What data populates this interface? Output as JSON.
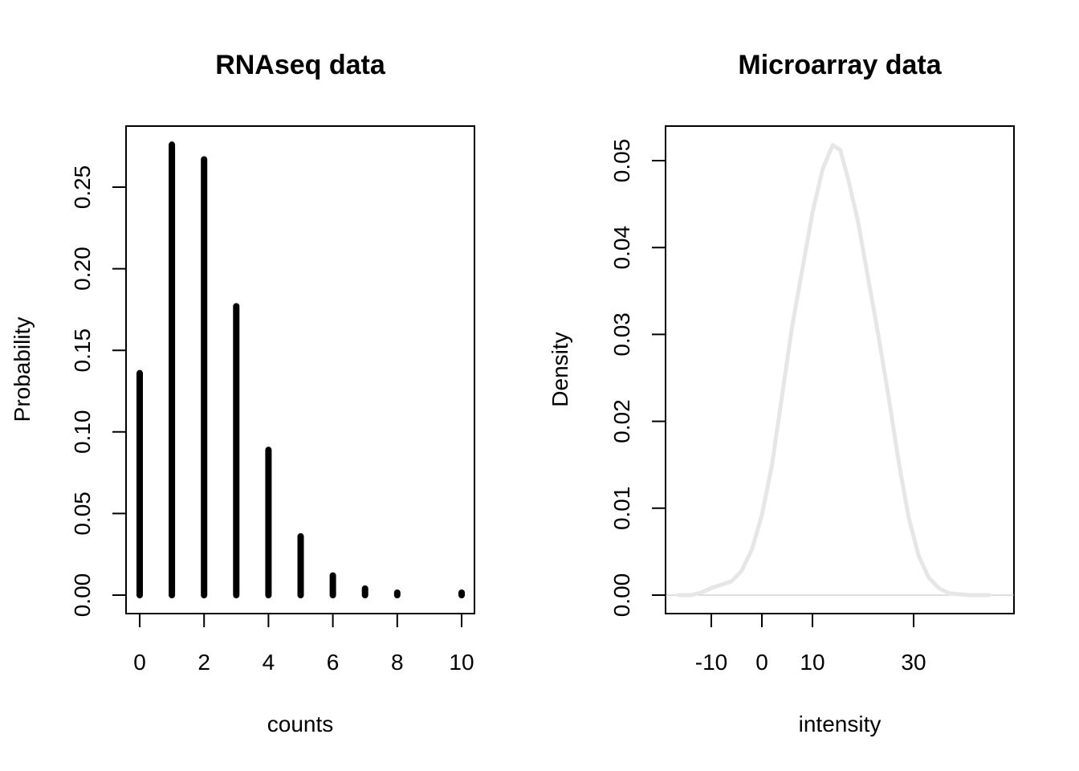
{
  "chart_data": [
    {
      "type": "bar",
      "title": "RNAseq data",
      "xlabel": "counts",
      "ylabel": "Probability",
      "x": [
        0,
        1,
        2,
        3,
        4,
        5,
        6,
        7,
        8,
        10
      ],
      "values": [
        0.136,
        0.276,
        0.267,
        0.177,
        0.089,
        0.036,
        0.012,
        0.004,
        0.001,
        0.0005
      ],
      "xlim": [
        -0.4,
        10.4
      ],
      "ylim": [
        0,
        0.292
      ],
      "xticks": [
        "0",
        "2",
        "4",
        "6",
        "8",
        "10"
      ],
      "yticks": [
        "0.00",
        "0.05",
        "0.10",
        "0.15",
        "0.20",
        "0.25"
      ],
      "bar_color": "#000000",
      "grid": false
    },
    {
      "type": "line",
      "title": "Microarray data",
      "xlabel": "intensity",
      "ylabel": "Density",
      "x": [
        -16.5,
        -14,
        -12,
        -10,
        -8,
        -6,
        -4,
        -2,
        0,
        2,
        4,
        6,
        8,
        10,
        12,
        14,
        15.5,
        17,
        19,
        21,
        23,
        25,
        27,
        29,
        31,
        33,
        35,
        37,
        39,
        41,
        43,
        45
      ],
      "y": [
        0.0,
        0.0,
        0.0003,
        0.0008,
        0.0012,
        0.0016,
        0.0028,
        0.0052,
        0.0092,
        0.015,
        0.023,
        0.031,
        0.0375,
        0.044,
        0.049,
        0.0518,
        0.0512,
        0.048,
        0.043,
        0.0365,
        0.03,
        0.023,
        0.0155,
        0.009,
        0.0045,
        0.002,
        0.0008,
        0.0002,
        0.0001,
        0.0,
        0.0,
        0.0
      ],
      "xlim": [
        -19.3,
        49.8
      ],
      "ylim": [
        -0.002,
        0.054
      ],
      "xticks": [
        "-10",
        "0",
        "10",
        "30"
      ],
      "yticks": [
        "0.00",
        "0.01",
        "0.02",
        "0.03",
        "0.04",
        "0.05"
      ],
      "line_color": "#e6e6e6",
      "baseline_color": "#bebebe",
      "grid": false
    }
  ]
}
